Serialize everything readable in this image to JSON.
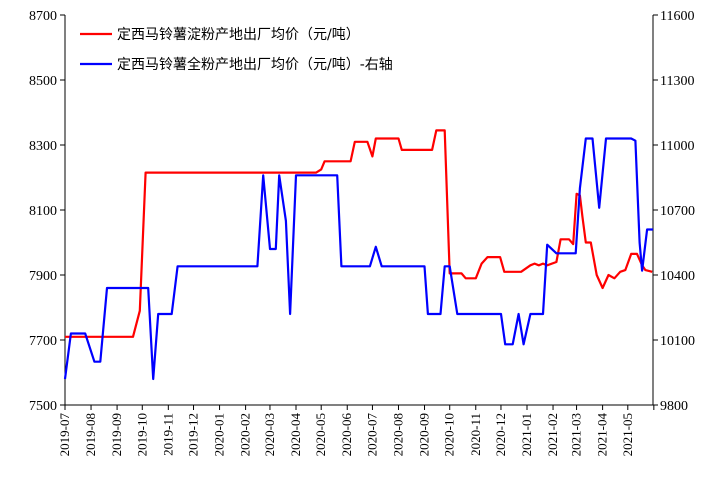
{
  "chart_data": {
    "type": "line",
    "x": [
      "2019-07",
      "2019-08",
      "2019-09",
      "2019-10",
      "2019-11",
      "2019-12",
      "2020-01",
      "2020-02",
      "2020-03",
      "2020-04",
      "2020-05",
      "2020-06",
      "2020-07",
      "2020-08",
      "2020-09",
      "2020-10",
      "2020-11",
      "2020-12",
      "2021-01",
      "2021-02",
      "2021-03",
      "2021-04",
      "2021-05"
    ],
    "xlim": [
      "2019-07-01",
      "2021-05-31"
    ],
    "y_left": {
      "ylim": [
        7500,
        8700
      ],
      "ticks": [
        7500,
        7700,
        7900,
        8100,
        8300,
        8500,
        8700
      ]
    },
    "y_right": {
      "ylim": [
        9800,
        11600
      ],
      "ticks": [
        9800,
        10100,
        10400,
        10700,
        11000,
        11300,
        11600
      ]
    },
    "grid": false,
    "legend_position": "top-left",
    "series": [
      {
        "name": "定西马铃薯淀粉产地出厂均价（元/吨）",
        "axis": "left",
        "color": "#ff0000",
        "points": [
          [
            "2019-07-01",
            7710
          ],
          [
            "2019-09-20",
            7710
          ],
          [
            "2019-09-28",
            7790
          ],
          [
            "2019-10-05",
            8215
          ],
          [
            "2020-04-25",
            8215
          ],
          [
            "2020-05-01",
            8225
          ],
          [
            "2020-05-05",
            8250
          ],
          [
            "2020-06-05",
            8250
          ],
          [
            "2020-06-10",
            8310
          ],
          [
            "2020-06-25",
            8310
          ],
          [
            "2020-07-01",
            8265
          ],
          [
            "2020-07-05",
            8320
          ],
          [
            "2020-08-01",
            8320
          ],
          [
            "2020-08-05",
            8285
          ],
          [
            "2020-09-10",
            8285
          ],
          [
            "2020-09-15",
            8345
          ],
          [
            "2020-09-25",
            8345
          ],
          [
            "2020-10-01",
            7905
          ],
          [
            "2020-10-15",
            7905
          ],
          [
            "2020-10-20",
            7890
          ],
          [
            "2020-11-01",
            7890
          ],
          [
            "2020-11-08",
            7935
          ],
          [
            "2020-11-15",
            7955
          ],
          [
            "2020-11-30",
            7955
          ],
          [
            "2020-12-05",
            7910
          ],
          [
            "2020-12-25",
            7910
          ],
          [
            "2021-01-05",
            7930
          ],
          [
            "2021-01-10",
            7935
          ],
          [
            "2021-01-15",
            7930
          ],
          [
            "2021-01-20",
            7935
          ],
          [
            "2021-01-25",
            7930
          ],
          [
            "2021-02-05",
            7940
          ],
          [
            "2021-02-10",
            8010
          ],
          [
            "2021-02-20",
            8010
          ],
          [
            "2021-02-25",
            7995
          ],
          [
            "2021-03-01",
            8150
          ],
          [
            "2021-03-05",
            8145
          ],
          [
            "2021-03-08",
            8080
          ],
          [
            "2021-03-12",
            8000
          ],
          [
            "2021-03-18",
            8000
          ],
          [
            "2021-03-25",
            7900
          ],
          [
            "2021-04-01",
            7860
          ],
          [
            "2021-04-08",
            7900
          ],
          [
            "2021-04-15",
            7890
          ],
          [
            "2021-04-22",
            7910
          ],
          [
            "2021-04-28",
            7915
          ],
          [
            "2021-05-05",
            7965
          ],
          [
            "2021-05-12",
            7965
          ],
          [
            "2021-05-18",
            7930
          ],
          [
            "2021-05-22",
            7915
          ],
          [
            "2021-05-30",
            7910
          ]
        ]
      },
      {
        "name": "定西马铃薯全粉产地出厂均价（元/吨）-右轴",
        "axis": "right",
        "color": "#0000ff",
        "points": [
          [
            "2019-07-01",
            9920
          ],
          [
            "2019-07-08",
            10130
          ],
          [
            "2019-07-25",
            10130
          ],
          [
            "2019-08-05",
            10000
          ],
          [
            "2019-08-12",
            10000
          ],
          [
            "2019-08-20",
            10340
          ],
          [
            "2019-10-08",
            10340
          ],
          [
            "2019-10-14",
            9920
          ],
          [
            "2019-10-20",
            10220
          ],
          [
            "2019-11-05",
            10220
          ],
          [
            "2019-11-12",
            10440
          ],
          [
            "2020-02-15",
            10440
          ],
          [
            "2020-02-22",
            10860
          ],
          [
            "2020-03-01",
            10520
          ],
          [
            "2020-03-08",
            10520
          ],
          [
            "2020-03-12",
            10860
          ],
          [
            "2020-03-20",
            10650
          ],
          [
            "2020-03-25",
            10220
          ],
          [
            "2020-04-01",
            10860
          ],
          [
            "2020-05-20",
            10860
          ],
          [
            "2020-05-25",
            10440
          ],
          [
            "2020-06-28",
            10440
          ],
          [
            "2020-07-05",
            10530
          ],
          [
            "2020-07-12",
            10440
          ],
          [
            "2020-09-01",
            10440
          ],
          [
            "2020-09-05",
            10220
          ],
          [
            "2020-09-20",
            10220
          ],
          [
            "2020-09-25",
            10440
          ],
          [
            "2020-10-01",
            10440
          ],
          [
            "2020-10-10",
            10220
          ],
          [
            "2020-12-01",
            10220
          ],
          [
            "2020-12-06",
            10080
          ],
          [
            "2020-12-15",
            10080
          ],
          [
            "2020-12-22",
            10220
          ],
          [
            "2020-12-28",
            10080
          ],
          [
            "2021-01-05",
            10220
          ],
          [
            "2021-01-20",
            10220
          ],
          [
            "2021-01-25",
            10540
          ],
          [
            "2021-02-05",
            10500
          ],
          [
            "2021-02-28",
            10500
          ],
          [
            "2021-03-05",
            10800
          ],
          [
            "2021-03-12",
            11030
          ],
          [
            "2021-03-20",
            11030
          ],
          [
            "2021-03-28",
            10710
          ],
          [
            "2021-04-05",
            11030
          ],
          [
            "2021-05-05",
            11030
          ],
          [
            "2021-05-10",
            11020
          ],
          [
            "2021-05-15",
            10550
          ],
          [
            "2021-05-18",
            10420
          ],
          [
            "2021-05-24",
            10610
          ],
          [
            "2021-05-31",
            10610
          ]
        ]
      }
    ]
  }
}
